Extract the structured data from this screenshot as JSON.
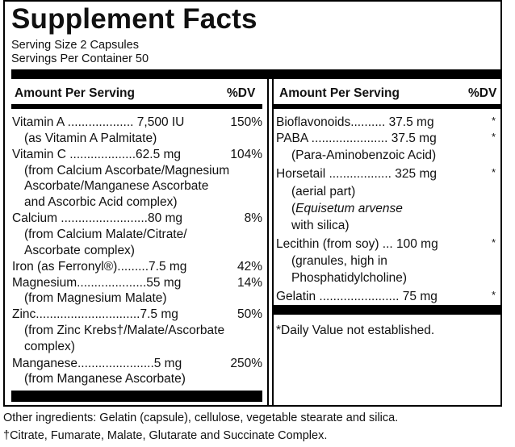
{
  "title": "Supplement Facts",
  "serving_size": "Serving Size 2 Capsules",
  "servings_per_container": "Servings Per Container 50",
  "left": {
    "header_amount": "Amount Per Serving",
    "header_dv": "%DV",
    "rows": [
      {
        "text": "Vitamin A ................... 7,500 IU",
        "dv": "150%"
      },
      {
        "text": "(as Vitamin A Palmitate)"
      },
      {
        "text": "Vitamin C ...................62.5 mg",
        "dv": "104%"
      },
      {
        "text": "(from Calcium Ascorbate/Magnesium"
      },
      {
        "text": "Ascorbate/Manganese Ascorbate"
      },
      {
        "text": "and Ascorbic Acid complex)"
      },
      {
        "text": "Calcium .........................80 mg",
        "dv": "8%"
      },
      {
        "text": "(from Calcium Malate/Citrate/"
      },
      {
        "text": "Ascorbate complex)"
      },
      {
        "text": "Iron (as Ferronyl®).........7.5 mg",
        "dv": "42%"
      },
      {
        "text": "Magnesium....................55 mg",
        "dv": "14%"
      },
      {
        "text": "(from Magnesium Malate)"
      },
      {
        "text": "Zinc..............................7.5 mg",
        "dv": "50%"
      },
      {
        "text": "(from Zinc Krebs†/Malate/Ascorbate"
      },
      {
        "text": "complex)"
      },
      {
        "text": "Manganese......................5 mg",
        "dv": "250%"
      },
      {
        "text": "(from Manganese Ascorbate)"
      }
    ]
  },
  "right": {
    "header_amount": "Amount Per Serving",
    "header_dv": "%DV",
    "rows": [
      {
        "text": "Bioflavonoids.......... 37.5 mg",
        "dv": "*"
      },
      {
        "text": "PABA ...................... 37.5 mg",
        "dv": "*"
      },
      {
        "text": "(Para-Aminobenzoic Acid)"
      },
      {
        "text": "Horsetail .................. 325 mg",
        "dv": "*"
      },
      {
        "text": "(aerial part)"
      },
      {
        "text": "(Equisetum arvense"
      },
      {
        "text": "with silica)"
      },
      {
        "text": "Lecithin (from soy) ... 100 mg",
        "dv": "*"
      },
      {
        "text": "(granules, high in"
      },
      {
        "text": "Phosphatidylcholine)"
      },
      {
        "text": "Gelatin ....................... 75 mg",
        "dv": "*"
      }
    ],
    "note": "*Daily Value not established."
  },
  "other_ingredients": "Other ingredients: Gelatin (capsule), cellulose, vegetable stearate and silica.",
  "footnote": "†Citrate, Fumarate, Malate, Glutarate and Succinate Complex."
}
